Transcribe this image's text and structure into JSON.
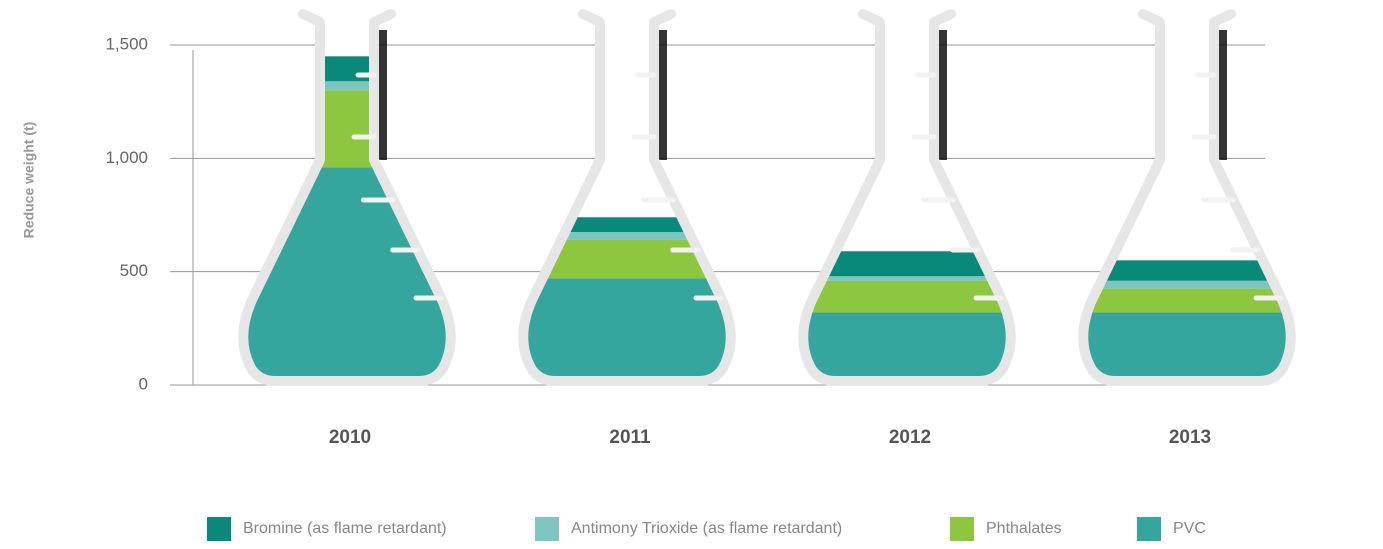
{
  "chart_data": {
    "type": "stacked-bar",
    "y_label": "Reduce weight (t)",
    "categories": [
      "2010",
      "2011",
      "2012",
      "2013"
    ],
    "series": [
      {
        "name": "Bromine (as flame retardant)",
        "color": "#08897a",
        "values": [
          110,
          65,
          110,
          90
        ]
      },
      {
        "name": "Antimony Trioxide (as flame retardant)",
        "color": "#7cc6bd",
        "values": [
          40,
          35,
          20,
          35
        ]
      },
      {
        "name": "Phthalates",
        "color": "#8dc63f",
        "values": [
          340,
          170,
          140,
          105
        ]
      },
      {
        "name": "PVC",
        "color": "#35a69e",
        "values": [
          960,
          470,
          320,
          320
        ]
      }
    ],
    "ylim": [
      0,
      1500
    ],
    "yticks": [
      0,
      500,
      {
        "value": 1000,
        "label": "1,000"
      },
      {
        "value": 1500,
        "label": "1,500"
      }
    ],
    "grid": true
  }
}
